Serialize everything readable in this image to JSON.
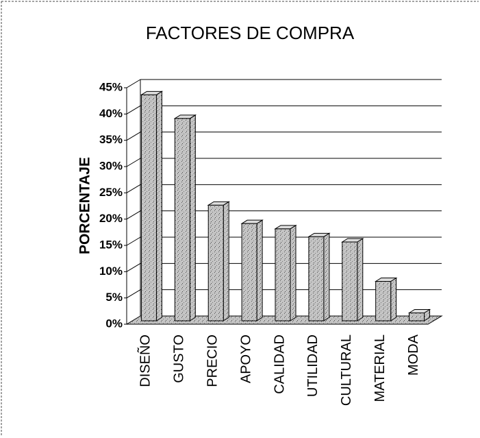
{
  "chart_data": {
    "type": "bar",
    "title": "FACTORES DE COMPRA",
    "y_label": "PORCENTAJE",
    "categories": [
      "DISEÑO",
      "GUSTO",
      "PRECIO",
      "APOYO",
      "CALIDAD",
      "UTILIDAD",
      "CULTURAL",
      "MATERIAL",
      "MODA"
    ],
    "values": [
      43,
      38.5,
      22,
      18.5,
      17.5,
      16,
      15,
      7.5,
      1.5
    ],
    "color": "#c4c4c4",
    "ylim": [
      0,
      45
    ],
    "yticks": [
      {
        "value": 0,
        "label": "0%"
      },
      {
        "value": 5,
        "label": "5%"
      },
      {
        "value": 10,
        "label": "10%"
      },
      {
        "value": 15,
        "label": "15%"
      },
      {
        "value": 20,
        "label": "20%"
      },
      {
        "value": 25,
        "label": "25%"
      },
      {
        "value": 30,
        "label": "30%"
      },
      {
        "value": 35,
        "label": "35%"
      },
      {
        "value": 40,
        "label": "40%"
      },
      {
        "value": 45,
        "label": "45%"
      }
    ],
    "grid": true
  }
}
